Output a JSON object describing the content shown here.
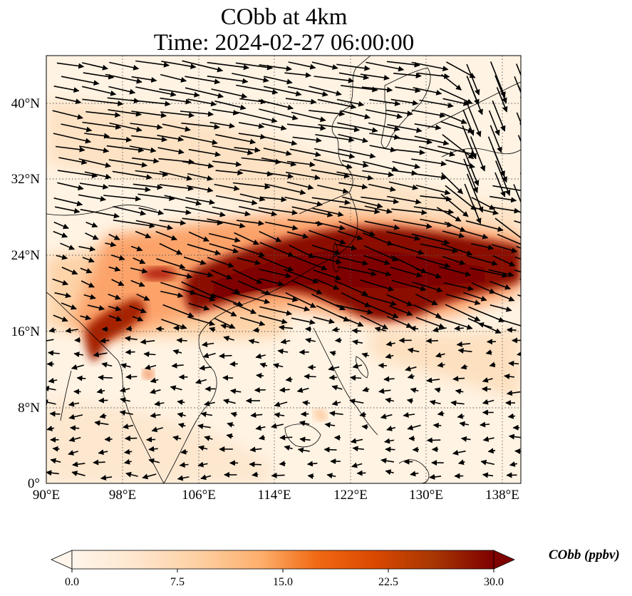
{
  "title": {
    "line1": "CObb at 4km",
    "line2": "Time: 2024-02-27 06:00:00"
  },
  "map": {
    "lon_range": [
      90,
      140
    ],
    "lat_range": [
      0,
      45
    ],
    "x_ticks": [
      "90°E",
      "98°E",
      "106°E",
      "114°E",
      "122°E",
      "130°E",
      "138°E"
    ],
    "y_ticks": [
      "0°",
      "8°N",
      "16°N",
      "24°N",
      "32°N",
      "40°N"
    ],
    "gridlines": "dotted",
    "field_description": "carbon monoxide biomass burning plume",
    "wind_vectors": true
  },
  "colorbar": {
    "ticks": [
      "0.0",
      "7.5",
      "15.0",
      "22.5",
      "30.0"
    ],
    "label": "CObb (ppbv)",
    "colormap": [
      "#fff5eb",
      "#fee6ce",
      "#fdd0a2",
      "#fdae6b",
      "#fd8d3c",
      "#f16913",
      "#d94801",
      "#a63603",
      "#7f0000"
    ],
    "extend": "both"
  }
}
